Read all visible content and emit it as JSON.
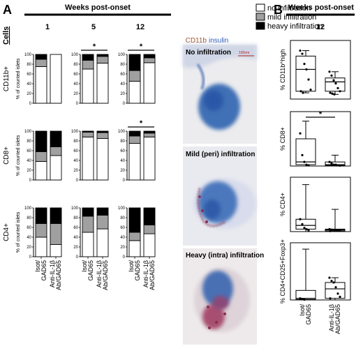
{
  "panels": {
    "a": {
      "letter": "A",
      "header": "Weeks post-onset",
      "cells_label": "Cells",
      "weeks": [
        "1",
        "5",
        "12"
      ]
    },
    "b": {
      "letter": "B",
      "header": "Weeks post-onset",
      "week": "12"
    }
  },
  "legend": [
    "no infiltration",
    "mild infiltration",
    "heavy infiltration"
  ],
  "colors": {
    "none": "#ffffff",
    "mild": "#a0a0a0",
    "heavy": "#000000",
    "cd11b": "#a0522d",
    "insulin": "#2c59b8"
  },
  "y_axis_label": "% of counted islets",
  "row_labels": [
    "CD11b+",
    "CD8+",
    "CD4+"
  ],
  "y_ticks": [
    "0",
    "20",
    "40",
    "60",
    "80",
    "100"
  ],
  "group_labels": [
    "Isot/\nGAD65",
    "Anti-IL-1β\nAb/GAD65"
  ],
  "stain_legend": {
    "cd11b": "CD11b",
    "insulin": "insulin"
  },
  "images": [
    {
      "caption": "No infiltration",
      "scale": "100nm",
      "level": "none"
    },
    {
      "caption": "Mild (peri) infiltration",
      "level": "mild"
    },
    {
      "caption": "Heavy (intra) infiltration",
      "level": "heavy"
    }
  ],
  "chart_data": [
    {
      "type": "bar",
      "title": "CD11b+ week 1",
      "ylabel": "% of counted islets",
      "ylim": [
        0,
        100
      ],
      "categories": [
        "Isot/GAD65",
        "Anti-IL-1β Ab/GAD65"
      ],
      "series": [
        {
          "name": "no infiltration",
          "values": [
            75,
            100
          ]
        },
        {
          "name": "mild infiltration",
          "values": [
            15,
            0
          ]
        },
        {
          "name": "heavy infiltration",
          "values": [
            10,
            0
          ]
        }
      ],
      "significance": false
    },
    {
      "type": "bar",
      "title": "CD11b+ week 5",
      "ylabel": "% of counted islets",
      "ylim": [
        0,
        100
      ],
      "categories": [
        "Isot/GAD65",
        "Anti-IL-1β Ab/GAD65"
      ],
      "series": [
        {
          "name": "no infiltration",
          "values": [
            70,
            82
          ]
        },
        {
          "name": "mild infiltration",
          "values": [
            18,
            14
          ]
        },
        {
          "name": "heavy infiltration",
          "values": [
            12,
            4
          ]
        }
      ],
      "significance": true
    },
    {
      "type": "bar",
      "title": "CD11b+ week 12",
      "ylabel": "% of counted islets",
      "ylim": [
        0,
        100
      ],
      "categories": [
        "Isot/GAD65",
        "Anti-IL-1β Ab/GAD65"
      ],
      "series": [
        {
          "name": "no infiltration",
          "values": [
            45,
            83
          ]
        },
        {
          "name": "mild infiltration",
          "values": [
            22,
            10
          ]
        },
        {
          "name": "heavy infiltration",
          "values": [
            33,
            7
          ]
        }
      ],
      "significance": true
    },
    {
      "type": "bar",
      "title": "CD8+ week 1",
      "ylabel": "% of counted islets",
      "ylim": [
        0,
        100
      ],
      "categories": [
        "Isot/GAD65",
        "Anti-IL-1β Ab/GAD65"
      ],
      "series": [
        {
          "name": "no infiltration",
          "values": [
            38,
            50
          ]
        },
        {
          "name": "mild infiltration",
          "values": [
            20,
            18
          ]
        },
        {
          "name": "heavy infiltration",
          "values": [
            42,
            32
          ]
        }
      ],
      "significance": false
    },
    {
      "type": "bar",
      "title": "CD8+ week 5",
      "ylabel": "% of counted islets",
      "ylim": [
        0,
        100
      ],
      "categories": [
        "Isot/GAD65",
        "Anti-IL-1β Ab/GAD65"
      ],
      "series": [
        {
          "name": "no infiltration",
          "values": [
            88,
            85
          ]
        },
        {
          "name": "mild infiltration",
          "values": [
            10,
            12
          ]
        },
        {
          "name": "heavy infiltration",
          "values": [
            2,
            3
          ]
        }
      ],
      "significance": false
    },
    {
      "type": "bar",
      "title": "CD8+ week 12",
      "ylabel": "% of counted islets",
      "ylim": [
        0,
        100
      ],
      "categories": [
        "Isot/GAD65",
        "Anti-IL-1β Ab/GAD65"
      ],
      "series": [
        {
          "name": "no infiltration",
          "values": [
            75,
            88
          ]
        },
        {
          "name": "mild infiltration",
          "values": [
            15,
            8
          ]
        },
        {
          "name": "heavy infiltration",
          "values": [
            10,
            4
          ]
        }
      ],
      "significance": true
    },
    {
      "type": "bar",
      "title": "CD4+ week 1",
      "ylabel": "% of counted islets",
      "ylim": [
        0,
        100
      ],
      "categories": [
        "Isot/GAD65",
        "Anti-IL-1β Ab/GAD65"
      ],
      "series": [
        {
          "name": "no infiltration",
          "values": [
            40,
            25
          ]
        },
        {
          "name": "mild infiltration",
          "values": [
            28,
            43
          ]
        },
        {
          "name": "heavy infiltration",
          "values": [
            32,
            32
          ]
        }
      ],
      "significance": false
    },
    {
      "type": "bar",
      "title": "CD4+ week 5",
      "ylabel": "% of counted islets",
      "ylim": [
        0,
        100
      ],
      "categories": [
        "Isot/GAD65",
        "Anti-IL-1β Ab/GAD65"
      ],
      "series": [
        {
          "name": "no infiltration",
          "values": [
            50,
            57
          ]
        },
        {
          "name": "mild infiltration",
          "values": [
            33,
            28
          ]
        },
        {
          "name": "heavy infiltration",
          "values": [
            17,
            15
          ]
        }
      ],
      "significance": false
    },
    {
      "type": "bar",
      "title": "CD4+ week 12",
      "ylabel": "% of counted islets",
      "ylim": [
        0,
        100
      ],
      "categories": [
        "Isot/GAD65",
        "Anti-IL-1β Ab/GAD65"
      ],
      "series": [
        {
          "name": "no infiltration",
          "values": [
            33,
            47
          ]
        },
        {
          "name": "mild infiltration",
          "values": [
            17,
            18
          ]
        },
        {
          "name": "heavy infiltration",
          "values": [
            50,
            35
          ]
        }
      ],
      "significance": false
    },
    {
      "type": "box",
      "ylabel": "% CD11b^high",
      "categories": [
        "Isot/GAD65",
        "Anti-IL-1β Ab/GAD65"
      ],
      "boxes": [
        {
          "min": 8,
          "q1": 10,
          "median": 38,
          "q3": 55,
          "max": 62,
          "points": [
            62,
            58,
            45,
            38,
            25,
            12,
            10,
            8
          ]
        },
        {
          "min": 6,
          "q1": 10,
          "median": 22,
          "q3": 27,
          "max": 35,
          "points": [
            35,
            30,
            24,
            20,
            14,
            10,
            8,
            7,
            6
          ]
        }
      ],
      "ylim": [
        0,
        75
      ],
      "significance": false
    },
    {
      "type": "box",
      "ylabel": "% CD8+",
      "categories": [
        "Isot/GAD65",
        "Anti-IL-1β Ab/GAD65"
      ],
      "boxes": [
        {
          "min": 0,
          "q1": 1,
          "median": 3,
          "q3": 20,
          "max": 33,
          "points": [
            24,
            8,
            3,
            1,
            0.5
          ]
        },
        {
          "min": 0,
          "q1": 0.5,
          "median": 1,
          "q3": 3,
          "max": 8,
          "points": [
            3,
            2,
            1,
            1,
            0.5,
            0.3
          ]
        }
      ],
      "ylim": [
        0,
        40
      ],
      "significance": true
    },
    {
      "type": "box",
      "ylabel": "% CD4+",
      "categories": [
        "Isot/GAD65",
        "Anti-IL-1β Ab/GAD65"
      ],
      "boxes": [
        {
          "min": 0,
          "q1": 1,
          "median": 2.5,
          "q3": 5,
          "max": 19,
          "points": [
            5,
            3,
            1.5,
            1,
            0.5
          ]
        },
        {
          "min": 0,
          "q1": 0.3,
          "median": 0.7,
          "q3": 1,
          "max": 9,
          "points": [
            1,
            0.8,
            0.6,
            0.5,
            0.4,
            0.3,
            0.2
          ]
        }
      ],
      "ylim": [
        0,
        22
      ],
      "significance": false
    },
    {
      "type": "box",
      "ylabel": "% CD4+CD25+Foxp3+",
      "categories": [
        "Isot/GAD65",
        "Anti-IL-1β Ab/GAD65"
      ],
      "boxes": [
        {
          "min": 0,
          "q1": 0.3,
          "median": 1,
          "q3": 6,
          "max": 32,
          "points": [
            1,
            0.5,
            0.2
          ]
        },
        {
          "min": 0,
          "q1": 1,
          "median": 7,
          "q3": 11,
          "max": 14,
          "points": [
            14,
            12,
            11,
            8,
            4,
            2,
            1
          ]
        }
      ],
      "ylim": [
        0,
        36
      ],
      "significance": false
    }
  ]
}
